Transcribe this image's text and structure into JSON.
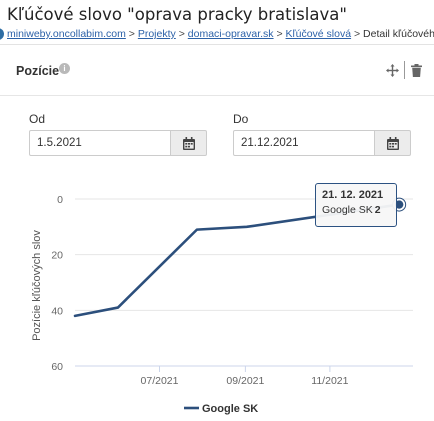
{
  "page": {
    "title": "Kľúčové slovo \"oprava pracky bratislava\""
  },
  "breadcrumb": {
    "items": [
      {
        "label": "miniweby.oncollabim.com",
        "link": true
      },
      {
        "label": "Projekty",
        "link": true
      },
      {
        "label": "domaci-opravar.sk",
        "link": true
      },
      {
        "label": "Kľúčové slová",
        "link": true
      },
      {
        "label": "Detail kľúčového slova",
        "link": false
      }
    ],
    "separator": ">"
  },
  "card": {
    "title": "Pozície",
    "info_icon": "info-icon",
    "move_icon": "move-icon",
    "delete_icon": "trash-icon"
  },
  "date_range": {
    "from_label": "Od",
    "from_value": "1.5.2021",
    "to_label": "Do",
    "to_value": "21.12.2021",
    "calendar_icon": "calendar-icon"
  },
  "chart_data": {
    "type": "line",
    "ylabel": "Pozície kľúčových slov",
    "y_reversed": true,
    "ylim": [
      0,
      60
    ],
    "yticks": [
      0,
      20,
      40,
      60
    ],
    "xlim": [
      "2021-05-01",
      "2021-12-31"
    ],
    "xticks": [
      {
        "date": "2021-07-01",
        "label": "07/2021"
      },
      {
        "date": "2021-09-01",
        "label": "09/2021"
      },
      {
        "date": "2021-11-01",
        "label": "11/2021"
      }
    ],
    "grid": true,
    "legend_position": "bottom",
    "series": [
      {
        "name": "Google SK",
        "color": "#2c4f7c",
        "points": [
          {
            "x": "2021-05-01",
            "y": 42
          },
          {
            "x": "2021-06-01",
            "y": 39
          },
          {
            "x": "2021-07-28",
            "y": 11
          },
          {
            "x": "2021-09-02",
            "y": 10
          },
          {
            "x": "2021-12-21",
            "y": 2
          }
        ]
      }
    ]
  },
  "tooltip": {
    "date": "21. 12. 2021",
    "series": "Google SK",
    "value": "2"
  }
}
